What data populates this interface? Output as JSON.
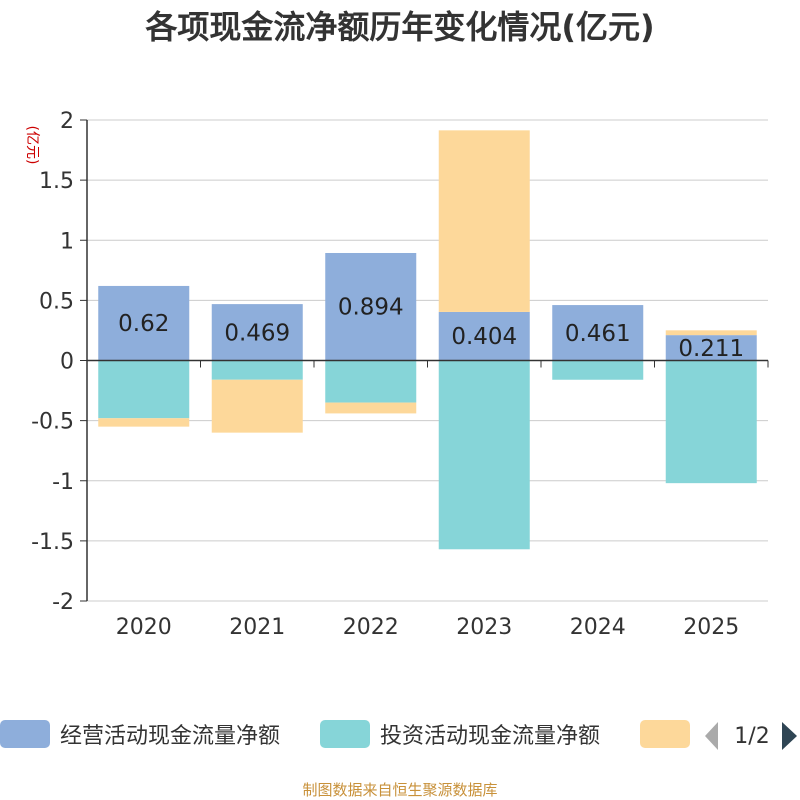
{
  "title": "各项现金流净额历年变化情况(亿元)",
  "source": "制图数据来自恒生聚源数据库",
  "legend_pager": {
    "current": 1,
    "total": 2,
    "text": "1/2"
  },
  "chart_data": {
    "type": "bar",
    "stacked": true,
    "title": "各项现金流净额历年变化情况(亿元)",
    "ylabel": "(亿元)",
    "ylim": [
      -2,
      2
    ],
    "yticks": [
      -2,
      -1.5,
      -1,
      -0.5,
      0,
      0.5,
      1,
      1.5,
      2
    ],
    "categories": [
      "2020",
      "2021",
      "2022",
      "2023",
      "2024",
      "2025"
    ],
    "series": [
      {
        "name": "经营活动现金流量净额",
        "color": "#8eaedb",
        "values": [
          0.62,
          0.469,
          0.894,
          0.404,
          0.461,
          0.211
        ],
        "show_labels": true
      },
      {
        "name": "投资活动现金流量净额",
        "color": "#86d5d8",
        "values": [
          -0.48,
          -0.16,
          -0.35,
          -1.57,
          -0.16,
          -1.02
        ],
        "show_labels": false
      },
      {
        "name": "",
        "color": "#fdd89a",
        "values": [
          -0.07,
          -0.44,
          -0.09,
          1.51,
          0,
          0.04
        ],
        "show_labels": false
      }
    ],
    "legend_position": "bottom"
  }
}
